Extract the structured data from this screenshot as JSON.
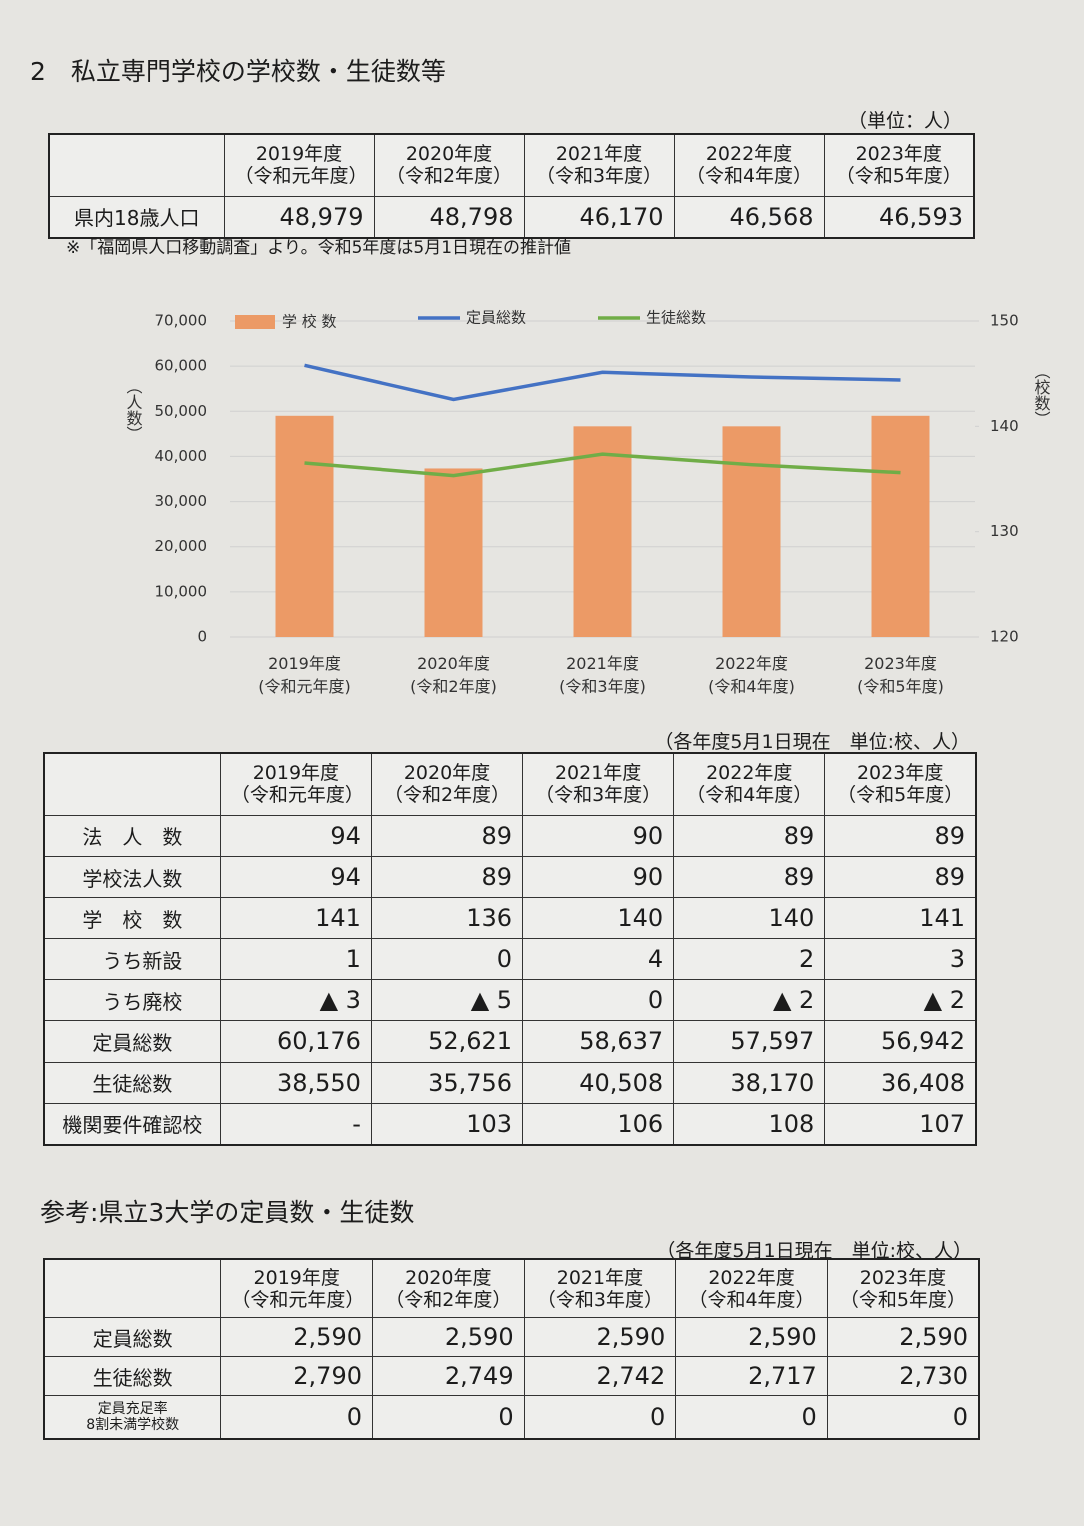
{
  "title": "2　私立専門学校の学校数・生徒数等",
  "population_table": {
    "unit": "（単位：人）",
    "headers": [
      "2019年度\n（令和元年度）",
      "2020年度\n（令和2年度）",
      "2021年度\n（令和3年度）",
      "2022年度\n（令和4年度）",
      "2023年度\n（令和5年度）"
    ],
    "rows": [
      {
        "label": "県内18歳人口",
        "values": [
          "48,979",
          "48,798",
          "46,170",
          "46,568",
          "46,593"
        ]
      }
    ],
    "note": "※「福岡県人口移動調査」より。令和5年度は5月1日現在の推計値"
  },
  "chart": {
    "type": "bar_line",
    "categories": [
      "2019年度\n(令和元年度)",
      "2020年度\n(令和2年度)",
      "2021年度\n(令和3年度)",
      "2022年度\n(令和4年度)",
      "2023年度\n(令和5年度)"
    ],
    "series": [
      {
        "name": "学 校 数",
        "type": "bar",
        "axis": "y2",
        "color": "#ec9a66",
        "values": [
          141,
          136,
          140,
          140,
          141
        ]
      },
      {
        "name": "定員総数",
        "type": "line",
        "color": "#4472c4",
        "values": [
          60176,
          52621,
          58637,
          57597,
          56942
        ]
      },
      {
        "name": "生徒総数",
        "type": "line",
        "color": "#70ad47",
        "values": [
          38550,
          35756,
          40508,
          38170,
          36408
        ]
      }
    ],
    "ylim": [
      0,
      70000
    ],
    "yticks": [
      0,
      {
        "value": 10000,
        "label": "10,000"
      },
      {
        "value": 20000,
        "label": "20,000"
      },
      {
        "value": 30000,
        "label": "30,000"
      },
      {
        "value": 40000,
        "label": "40,000"
      },
      {
        "value": 50000,
        "label": "50,000"
      },
      {
        "value": 60000,
        "label": "60,000"
      },
      {
        "value": 70000,
        "label": "70,000"
      }
    ],
    "y2lim": [
      120,
      150
    ],
    "y2ticks": [
      120,
      130,
      140,
      150
    ],
    "ylabel": "（人数）",
    "y2label": "（校数）",
    "grid": true
  },
  "schools_table": {
    "unit": "（各年度5月1日現在　単位:校、人）",
    "headers": [
      "2019年度\n（令和元年度）",
      "2020年度\n（令和2年度）",
      "2021年度\n（令和3年度）",
      "2022年度\n（令和4年度）",
      "2023年度\n（令和5年度）"
    ],
    "rows": [
      {
        "label": "法　人　数",
        "values": [
          "94",
          "89",
          "90",
          "89",
          "89"
        ]
      },
      {
        "label": "学校法人数",
        "values": [
          "94",
          "89",
          "90",
          "89",
          "89"
        ]
      },
      {
        "label": "学　校　数",
        "values": [
          "141",
          "136",
          "140",
          "140",
          "141"
        ]
      },
      {
        "label": "　うち新設",
        "values": [
          "1",
          "0",
          "4",
          "2",
          "3"
        ]
      },
      {
        "label": "　うち廃校",
        "values": [
          "▲ 3",
          "▲ 5",
          "0",
          "▲ 2",
          "▲ 2"
        ]
      },
      {
        "label": "定員総数",
        "values": [
          "60,176",
          "52,621",
          "58,637",
          "57,597",
          "56,942"
        ]
      },
      {
        "label": "生徒総数",
        "values": [
          "38,550",
          "35,756",
          "40,508",
          "38,170",
          "36,408"
        ]
      },
      {
        "label": "機関要件確認校",
        "values": [
          "-",
          "103",
          "106",
          "108",
          "107"
        ]
      }
    ]
  },
  "universities_section": {
    "title": "参考:県立3大学の定員数・生徒数",
    "unit": "（各年度5月1日現在　単位:校、人）",
    "headers": [
      "2019年度\n（令和元年度）",
      "2020年度\n（令和2年度）",
      "2021年度\n（令和3年度）",
      "2022年度\n（令和4年度）",
      "2023年度\n（令和5年度）"
    ],
    "rows": [
      {
        "label": "定員総数",
        "values": [
          "2,590",
          "2,590",
          "2,590",
          "2,590",
          "2,590"
        ]
      },
      {
        "label": "生徒総数",
        "values": [
          "2,790",
          "2,749",
          "2,742",
          "2,717",
          "2,730"
        ]
      },
      {
        "label": "定員充足率\n8割未満学校数",
        "values": [
          "0",
          "0",
          "0",
          "0",
          "0"
        ]
      }
    ]
  }
}
